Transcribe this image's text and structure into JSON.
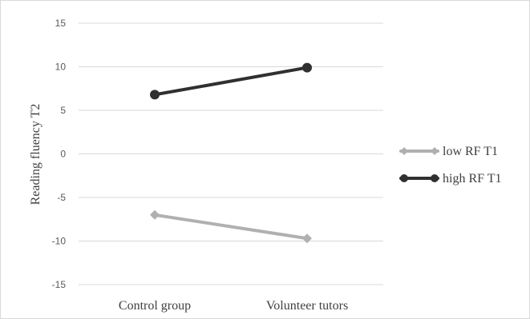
{
  "chart_data": {
    "type": "line",
    "title": "",
    "xlabel": "",
    "ylabel": "Reading fluency T2",
    "categories": [
      "Control group",
      "Volunteer tutors"
    ],
    "ylim": [
      -15,
      15
    ],
    "yticks": [
      15,
      10,
      5,
      0,
      -5,
      -10,
      -15
    ],
    "grid": true,
    "legend_position": "right",
    "series": [
      {
        "name": "low RF T1",
        "values": [
          -7.0,
          -9.7
        ],
        "color": "#b0b0b0",
        "marker": "diamond"
      },
      {
        "name": "high RF T1",
        "values": [
          6.8,
          9.9
        ],
        "color": "#303030",
        "marker": "circle"
      }
    ]
  }
}
